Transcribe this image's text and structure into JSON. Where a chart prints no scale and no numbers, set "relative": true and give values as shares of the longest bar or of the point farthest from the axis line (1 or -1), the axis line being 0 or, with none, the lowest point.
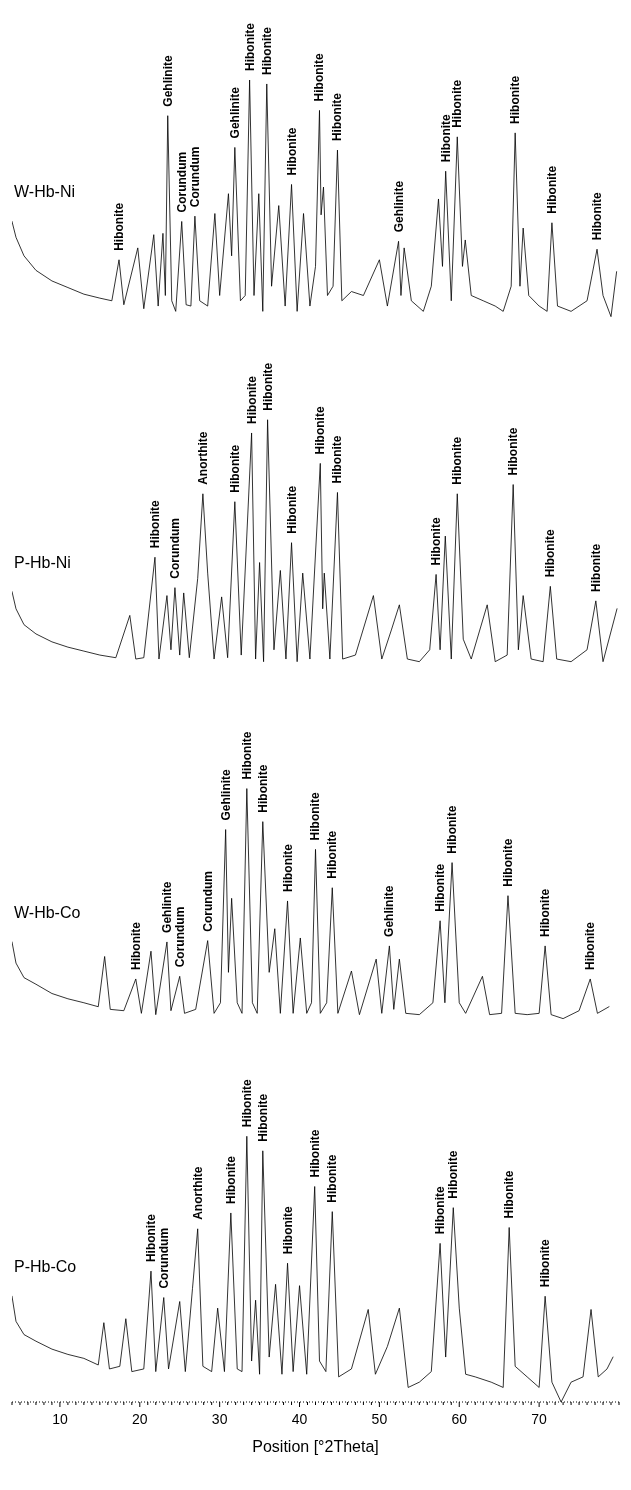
{
  "chart_data": {
    "type": "line",
    "relative": true,
    "xlabel": "Position [°2Theta]",
    "xlim": [
      4,
      80
    ],
    "xticks": [
      {
        "value": 4,
        "label": null
      },
      {
        "value": 5,
        "label": null
      },
      {
        "value": 6,
        "label": null
      },
      {
        "value": 7,
        "label": null
      },
      {
        "value": 8,
        "label": null
      },
      {
        "value": 9,
        "label": null
      },
      10,
      {
        "value": 11,
        "label": null
      },
      {
        "value": 12,
        "label": null
      },
      {
        "value": 13,
        "label": null
      },
      {
        "value": 14,
        "label": null
      },
      {
        "value": 15,
        "label": null
      },
      {
        "value": 16,
        "label": null
      },
      {
        "value": 17,
        "label": null
      },
      {
        "value": 18,
        "label": null
      },
      {
        "value": 19,
        "label": null
      },
      20,
      {
        "value": 21,
        "label": null
      },
      {
        "value": 22,
        "label": null
      },
      {
        "value": 23,
        "label": null
      },
      {
        "value": 24,
        "label": null
      },
      {
        "value": 25,
        "label": null
      },
      {
        "value": 26,
        "label": null
      },
      {
        "value": 27,
        "label": null
      },
      {
        "value": 28,
        "label": null
      },
      {
        "value": 29,
        "label": null
      },
      30,
      {
        "value": 31,
        "label": null
      },
      {
        "value": 32,
        "label": null
      },
      {
        "value": 33,
        "label": null
      },
      {
        "value": 34,
        "label": null
      },
      {
        "value": 35,
        "label": null
      },
      {
        "value": 36,
        "label": null
      },
      {
        "value": 37,
        "label": null
      },
      {
        "value": 38,
        "label": null
      },
      {
        "value": 39,
        "label": null
      },
      40,
      {
        "value": 41,
        "label": null
      },
      {
        "value": 42,
        "label": null
      },
      {
        "value": 43,
        "label": null
      },
      {
        "value": 44,
        "label": null
      },
      {
        "value": 45,
        "label": null
      },
      {
        "value": 46,
        "label": null
      },
      {
        "value": 47,
        "label": null
      },
      {
        "value": 48,
        "label": null
      },
      {
        "value": 49,
        "label": null
      },
      50,
      {
        "value": 51,
        "label": null
      },
      {
        "value": 52,
        "label": null
      },
      {
        "value": 53,
        "label": null
      },
      {
        "value": 54,
        "label": null
      },
      {
        "value": 55,
        "label": null
      },
      {
        "value": 56,
        "label": null
      },
      {
        "value": 57,
        "label": null
      },
      {
        "value": 58,
        "label": null
      },
      {
        "value": 59,
        "label": null
      },
      60,
      {
        "value": 61,
        "label": null
      },
      {
        "value": 62,
        "label": null
      },
      {
        "value": 63,
        "label": null
      },
      {
        "value": 64,
        "label": null
      },
      {
        "value": 65,
        "label": null
      },
      {
        "value": 66,
        "label": null
      },
      {
        "value": 67,
        "label": null
      },
      {
        "value": 68,
        "label": null
      },
      {
        "value": 69,
        "label": null
      },
      70,
      {
        "value": 71,
        "label": null
      },
      {
        "value": 72,
        "label": null
      },
      {
        "value": 73,
        "label": null
      },
      {
        "value": 74,
        "label": null
      },
      {
        "value": 75,
        "label": null
      },
      {
        "value": 76,
        "label": null
      },
      {
        "value": 77,
        "label": null
      },
      {
        "value": 78,
        "label": null
      },
      {
        "value": 79,
        "label": null
      },
      {
        "value": 80,
        "label": null
      }
    ],
    "series": [
      {
        "name": "W-Hb-Ni",
        "color": "#000000",
        "x": [
          4.0,
          4.5,
          5.5,
          7,
          9,
          11,
          13,
          15,
          16.5,
          17.4,
          18,
          19.75,
          20.5,
          21.75,
          22.3,
          22.9,
          23.2,
          23.5,
          24,
          24.5,
          25.25,
          25.8,
          26.4,
          26.9,
          27.5,
          28.5,
          29.4,
          30,
          31.1,
          31.5,
          31.9,
          32.6,
          33.2,
          33.75,
          34.3,
          34.9,
          35.4,
          35.9,
          36.5,
          37.4,
          38.2,
          39.0,
          39.7,
          40.5,
          41.3,
          42.0,
          42.5,
          42.7,
          43.0,
          43.5,
          44.2,
          44.75,
          45.3,
          46.5,
          48,
          50.0,
          51,
          52.4,
          52.7,
          53.1,
          54,
          55.5,
          56.5,
          57.4,
          57.9,
          58.3,
          59.0,
          59.75,
          60.4,
          60.75,
          61.5,
          63,
          64.5,
          65.5,
          66.5,
          67.0,
          67.6,
          68.0,
          68.7,
          70,
          71.0,
          71.6,
          72.3,
          74,
          76,
          77.25,
          78.0,
          79,
          79.7
        ],
        "values": [
          0.893,
          0.881,
          0.867,
          0.856,
          0.848,
          0.843,
          0.838,
          0.835,
          0.833,
          0.864,
          0.83,
          0.873,
          0.827,
          0.883,
          0.829,
          0.884,
          0.837,
          0.973,
          0.833,
          0.825,
          0.893,
          0.83,
          0.829,
          0.897,
          0.833,
          0.829,
          0.899,
          0.837,
          0.914,
          0.867,
          0.949,
          0.833,
          0.837,
          1.0,
          0.837,
          0.914,
          0.825,
          0.997,
          0.844,
          0.905,
          0.829,
          0.921,
          0.825,
          0.899,
          0.829,
          0.859,
          0.977,
          0.898,
          0.919,
          0.837,
          0.844,
          0.947,
          0.833,
          0.84,
          0.837,
          0.864,
          0.829,
          0.878,
          0.837,
          0.873,
          0.833,
          0.825,
          0.844,
          0.91,
          0.859,
          0.931,
          0.833,
          0.957,
          0.859,
          0.879,
          0.837,
          0.833,
          0.829,
          0.825,
          0.844,
          0.96,
          0.844,
          0.888,
          0.837,
          0.829,
          0.825,
          0.892,
          0.829,
          0.825,
          0.833,
          0.872,
          0.837,
          0.821,
          0.855
        ]
      },
      {
        "name": "P-Hb-Ni",
        "color": "#000000",
        "x": [
          4.0,
          4.5,
          5.5,
          7,
          9,
          11,
          13,
          15,
          17,
          18.75,
          19.5,
          20.5,
          21.9,
          22.4,
          23.4,
          23.9,
          24.4,
          25,
          25.5,
          26.2,
          27.25,
          27.9,
          28.5,
          29.3,
          30.25,
          31,
          31.9,
          32.7,
          34.0,
          34.5,
          35.0,
          35.5,
          36.0,
          36.8,
          37.6,
          38.3,
          39.0,
          39.7,
          40.4,
          41.3,
          42.6,
          42.9,
          43.1,
          43.8,
          44.75,
          45.4,
          47,
          49.25,
          50.3,
          51.5,
          52.5,
          53.5,
          55,
          56.3,
          57.1,
          57.6,
          58.25,
          59.0,
          59.75,
          60.5,
          61.5,
          63.5,
          64.5,
          66,
          66.75,
          67.4,
          68,
          69,
          70.5,
          71.4,
          72.2,
          74,
          76,
          77.1,
          78,
          79.75
        ],
        "values": [
          0.613,
          0.6,
          0.588,
          0.581,
          0.575,
          0.571,
          0.568,
          0.565,
          0.563,
          0.595,
          0.562,
          0.563,
          0.639,
          0.562,
          0.61,
          0.569,
          0.616,
          0.565,
          0.612,
          0.563,
          0.623,
          0.687,
          0.627,
          0.562,
          0.609,
          0.563,
          0.681,
          0.565,
          0.733,
          0.562,
          0.635,
          0.56,
          0.743,
          0.569,
          0.629,
          0.562,
          0.65,
          0.56,
          0.627,
          0.562,
          0.71,
          0.6,
          0.627,
          0.562,
          0.688,
          0.562,
          0.565,
          0.61,
          0.562,
          0.584,
          0.603,
          0.562,
          0.56,
          0.569,
          0.626,
          0.569,
          0.655,
          0.562,
          0.687,
          0.577,
          0.562,
          0.603,
          0.56,
          0.565,
          0.694,
          0.569,
          0.61,
          0.562,
          0.56,
          0.617,
          0.562,
          0.56,
          0.569,
          0.606,
          0.56,
          0.6
        ]
      },
      {
        "name": "W-Hb-Co",
        "color": "#000000",
        "x": [
          4.0,
          4.5,
          5.5,
          7,
          9,
          11,
          13,
          14.8,
          15.6,
          16.3,
          18,
          19.5,
          20.2,
          21.4,
          22,
          23.4,
          23.9,
          25.0,
          25.6,
          27,
          28.5,
          29.3,
          30.1,
          30.75,
          31.1,
          31.5,
          32.2,
          32.8,
          33.4,
          34.1,
          34.7,
          35.4,
          36.2,
          36.9,
          37.6,
          38.5,
          39.2,
          40.1,
          40.9,
          41.5,
          42.0,
          42.6,
          43.4,
          44.1,
          44.8,
          46.5,
          47.5,
          49.6,
          50.3,
          51.25,
          51.8,
          52.5,
          53.3,
          55,
          56.7,
          57.6,
          58.2,
          59.1,
          60,
          60.8,
          62.9,
          63.8,
          65.3,
          66.1,
          67.0,
          68.5,
          70.0,
          70.75,
          71.5,
          73,
          75,
          76.4,
          77.3,
          78.75
        ],
        "values": [
          0.348,
          0.332,
          0.321,
          0.316,
          0.309,
          0.305,
          0.302,
          0.299,
          0.337,
          0.297,
          0.296,
          0.32,
          0.294,
          0.341,
          0.293,
          0.348,
          0.296,
          0.322,
          0.294,
          0.297,
          0.349,
          0.294,
          0.302,
          0.433,
          0.325,
          0.381,
          0.302,
          0.294,
          0.464,
          0.302,
          0.294,
          0.439,
          0.325,
          0.358,
          0.294,
          0.379,
          0.294,
          0.351,
          0.294,
          0.302,
          0.418,
          0.294,
          0.302,
          0.389,
          0.294,
          0.326,
          0.293,
          0.335,
          0.294,
          0.345,
          0.297,
          0.335,
          0.294,
          0.293,
          0.302,
          0.364,
          0.302,
          0.408,
          0.302,
          0.294,
          0.322,
          0.293,
          0.294,
          0.383,
          0.294,
          0.293,
          0.294,
          0.345,
          0.293,
          0.29,
          0.296,
          0.32,
          0.294,
          0.299
        ]
      },
      {
        "name": "P-Hb-Co",
        "color": "#000000",
        "x": [
          4.0,
          4.5,
          5.5,
          7,
          9,
          11,
          13,
          14.8,
          15.5,
          16.2,
          17.5,
          18.25,
          19,
          20.5,
          21.4,
          22,
          23.0,
          23.6,
          25.0,
          25.7,
          26.6,
          27.25,
          27.9,
          29,
          29.75,
          30.6,
          31.4,
          32.2,
          32.8,
          33.4,
          34,
          34.5,
          35,
          35.4,
          36.2,
          37.0,
          37.8,
          38.5,
          39.2,
          40.0,
          40.9,
          41.9,
          42.5,
          43.3,
          44.1,
          44.9,
          46.5,
          48.6,
          49.5,
          51,
          52.5,
          53.6,
          55,
          56.5,
          57.6,
          58.3,
          59.25,
          60,
          60.8,
          62,
          64,
          65.5,
          66.25,
          67.0,
          68.5,
          70,
          70.75,
          71.6,
          72.75,
          74,
          75.5,
          76.5,
          77.4,
          78.5,
          79.25
        ],
        "values": [
          0.08,
          0.061,
          0.051,
          0.046,
          0.04,
          0.036,
          0.033,
          0.028,
          0.06,
          0.025,
          0.027,
          0.063,
          0.023,
          0.025,
          0.099,
          0.023,
          0.079,
          0.025,
          0.076,
          0.023,
          0.086,
          0.131,
          0.027,
          0.023,
          0.071,
          0.023,
          0.143,
          0.025,
          0.023,
          0.201,
          0.031,
          0.077,
          0.021,
          0.19,
          0.034,
          0.089,
          0.021,
          0.105,
          0.023,
          0.088,
          0.021,
          0.163,
          0.031,
          0.023,
          0.144,
          0.019,
          0.025,
          0.07,
          0.021,
          0.042,
          0.071,
          0.011,
          0.015,
          0.023,
          0.12,
          0.034,
          0.147,
          0.071,
          0.021,
          0.019,
          0.015,
          0.011,
          0.132,
          0.027,
          0.019,
          0.011,
          0.08,
          0.015,
          0,
          0.015,
          0.019,
          0.07,
          0.019,
          0.025,
          0.034
        ]
      }
    ],
    "annotations": [
      {
        "text": "Hibonite",
        "x": 17.4,
        "y": 0.864
      },
      {
        "text": "Gehlinite",
        "x": 23.5,
        "y": 0.973
      },
      {
        "text": "Corundum",
        "x": 25.25,
        "y": 0.893
      },
      {
        "text": "Corundum",
        "x": 26.9,
        "y": 0.897
      },
      {
        "text": "Gehlinite",
        "x": 31.9,
        "y": 0.949
      },
      {
        "text": "Hibonite",
        "x": 33.75,
        "y": 1.0
      },
      {
        "text": "Hibonite",
        "x": 35.9,
        "y": 0.997
      },
      {
        "text": "Hibonite",
        "x": 39.0,
        "y": 0.921
      },
      {
        "text": "Hibonite",
        "x": 42.5,
        "y": 0.977
      },
      {
        "text": "Hibonite",
        "x": 44.75,
        "y": 0.947
      },
      {
        "text": "Gehlinite",
        "x": 52.4,
        "y": 0.878
      },
      {
        "text": "Hibonite",
        "x": 58.3,
        "y": 0.931
      },
      {
        "text": "Hibonite",
        "x": 59.75,
        "y": 0.957
      },
      {
        "text": "Hibonite",
        "x": 67.0,
        "y": 0.96
      },
      {
        "text": "Hibonite",
        "x": 71.6,
        "y": 0.892
      },
      {
        "text": "Hibonite",
        "x": 77.25,
        "y": 0.872
      },
      {
        "text": "Hibonite",
        "x": 21.9,
        "y": 0.639
      },
      {
        "text": "Corundum",
        "x": 24.4,
        "y": 0.616
      },
      {
        "text": "Anorthite",
        "x": 27.9,
        "y": 0.687
      },
      {
        "text": "Hibonite",
        "x": 31.9,
        "y": 0.681
      },
      {
        "text": "Hibonite",
        "x": 34.0,
        "y": 0.733
      },
      {
        "text": "Hibonite",
        "x": 36.0,
        "y": 0.743
      },
      {
        "text": "Hibonite",
        "x": 39.0,
        "y": 0.65
      },
      {
        "text": "Hibonite",
        "x": 42.6,
        "y": 0.71
      },
      {
        "text": "Hibonite",
        "x": 44.75,
        "y": 0.688
      },
      {
        "text": "Hibonite",
        "x": 57.1,
        "y": 0.626
      },
      {
        "text": "Hibonite",
        "x": 59.75,
        "y": 0.687
      },
      {
        "text": "Hibonite",
        "x": 66.75,
        "y": 0.694
      },
      {
        "text": "Hibonite",
        "x": 71.4,
        "y": 0.617
      },
      {
        "text": "Hibonite",
        "x": 77.1,
        "y": 0.606
      },
      {
        "text": "Hibonite",
        "x": 19.5,
        "y": 0.32
      },
      {
        "text": "Gehlinite",
        "x": 23.4,
        "y": 0.348
      },
      {
        "text": "Corundum",
        "x": 25.0,
        "y": 0.322
      },
      {
        "text": "Corundum",
        "x": 28.5,
        "y": 0.349
      },
      {
        "text": "Gehlinite",
        "x": 30.75,
        "y": 0.433
      },
      {
        "text": "Hibonite",
        "x": 33.4,
        "y": 0.464
      },
      {
        "text": "Hibonite",
        "x": 35.4,
        "y": 0.439
      },
      {
        "text": "Hibonite",
        "x": 38.5,
        "y": 0.379
      },
      {
        "text": "Hibonite",
        "x": 42.0,
        "y": 0.418
      },
      {
        "text": "Hibonite",
        "x": 44.1,
        "y": 0.389
      },
      {
        "text": "Gehlinite",
        "x": 51.25,
        "y": 0.345
      },
      {
        "text": "Hibonite",
        "x": 57.6,
        "y": 0.364
      },
      {
        "text": "Hibonite",
        "x": 59.1,
        "y": 0.408
      },
      {
        "text": "Hibonite",
        "x": 66.1,
        "y": 0.383
      },
      {
        "text": "Hibonite",
        "x": 70.75,
        "y": 0.345
      },
      {
        "text": "Hibonite",
        "x": 76.4,
        "y": 0.32
      },
      {
        "text": "Hibonite",
        "x": 21.4,
        "y": 0.099
      },
      {
        "text": "Corundum",
        "x": 23.0,
        "y": 0.079
      },
      {
        "text": "Anorthite",
        "x": 27.25,
        "y": 0.131
      },
      {
        "text": "Hibonite",
        "x": 31.4,
        "y": 0.143
      },
      {
        "text": "Hibonite",
        "x": 33.4,
        "y": 0.201
      },
      {
        "text": "Hibonite",
        "x": 35.4,
        "y": 0.19
      },
      {
        "text": "Hibonite",
        "x": 38.5,
        "y": 0.105
      },
      {
        "text": "Hibonite",
        "x": 41.9,
        "y": 0.163
      },
      {
        "text": "Hibonite",
        "x": 44.1,
        "y": 0.144
      },
      {
        "text": "Hibonite",
        "x": 57.6,
        "y": 0.12
      },
      {
        "text": "Hibonite",
        "x": 59.25,
        "y": 0.147
      },
      {
        "text": "Hibonite",
        "x": 66.25,
        "y": 0.132
      },
      {
        "text": "Hibonite",
        "x": 70.75,
        "y": 0.08
      }
    ]
  }
}
